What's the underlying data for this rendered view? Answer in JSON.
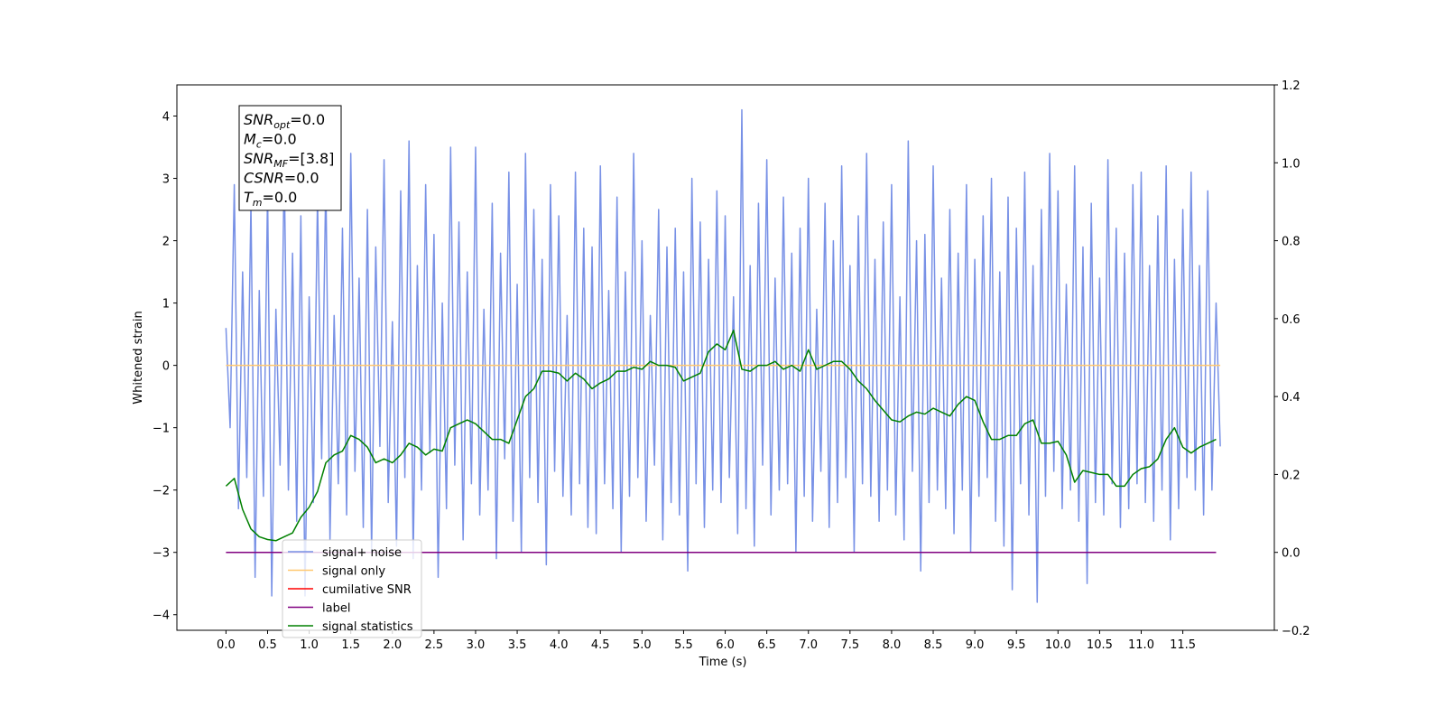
{
  "chart_data": {
    "type": "line",
    "xlabel": "Time (s)",
    "ylabel": "Whitened strain",
    "xlim": [
      -0.59,
      12.6
    ],
    "ylim": [
      -4.25,
      4.5
    ],
    "y2lim": [
      -0.2,
      1.2
    ],
    "xticks": [
      {
        "value": 0,
        "label": "0.0"
      },
      {
        "value": 0.5,
        "label": "0.5"
      },
      {
        "value": 1,
        "label": "1.0"
      },
      {
        "value": 1.5,
        "label": "1.5"
      },
      {
        "value": 2,
        "label": "2.0"
      },
      {
        "value": 2.5,
        "label": "2.5"
      },
      {
        "value": 3,
        "label": "3.0"
      },
      {
        "value": 3.5,
        "label": "3.5"
      },
      {
        "value": 4,
        "label": "4.0"
      },
      {
        "value": 4.5,
        "label": "4.5"
      },
      {
        "value": 5,
        "label": "5.0"
      },
      {
        "value": 5.5,
        "label": "5.5"
      },
      {
        "value": 6,
        "label": "6.0"
      },
      {
        "value": 6.5,
        "label": "6.5"
      },
      {
        "value": 7,
        "label": "7.0"
      },
      {
        "value": 7.5,
        "label": "7.5"
      },
      {
        "value": 8,
        "label": "8.0"
      },
      {
        "value": 8.5,
        "label": "8.5"
      },
      {
        "value": 9,
        "label": "9.0"
      },
      {
        "value": 9.5,
        "label": "9.5"
      },
      {
        "value": 10,
        "label": "10.0"
      },
      {
        "value": 10.5,
        "label": "10.5"
      },
      {
        "value": 11,
        "label": "11.0"
      },
      {
        "value": 11.5,
        "label": "11.5"
      }
    ],
    "yticks": [
      {
        "value": -4,
        "label": "−4"
      },
      {
        "value": -3,
        "label": "−3"
      },
      {
        "value": -2,
        "label": "−2"
      },
      {
        "value": -1,
        "label": "−1"
      },
      0,
      1,
      2,
      3,
      4
    ],
    "y2ticks": [
      {
        "value": -0.2,
        "label": "−0.2"
      },
      {
        "value": 0,
        "label": "0.0"
      },
      0.2,
      0.4,
      0.6,
      0.8,
      {
        "value": 1,
        "label": "1.0"
      },
      1.2
    ],
    "legend": "lower left",
    "annotation": [
      {
        "text": "SNR",
        "sub": "opt",
        "rest": "=0.0"
      },
      {
        "text": "M",
        "sub": "c",
        "rest": "=0.0"
      },
      {
        "text": "SNR",
        "sub": "MF",
        "rest": "=[3.8]"
      },
      {
        "text": "CSNR",
        "rest": "=0.0"
      },
      {
        "text": "T",
        "sub": "m",
        "rest": "=0.0"
      }
    ],
    "series": [
      {
        "name": "signal+ noise",
        "color": "#7891e6",
        "x": [
          0,
          0.05,
          0.1,
          0.15,
          0.2,
          0.25,
          0.3,
          0.35,
          0.4,
          0.45,
          0.5,
          0.55,
          0.6,
          0.65,
          0.7,
          0.75,
          0.8,
          0.85,
          0.9,
          0.95,
          1,
          1.05,
          1.1,
          1.15,
          1.2,
          1.25,
          1.3,
          1.35,
          1.4,
          1.45,
          1.5,
          1.55,
          1.6,
          1.65,
          1.7,
          1.75,
          1.8,
          1.85,
          1.9,
          1.95,
          2,
          2.05,
          2.1,
          2.15,
          2.2,
          2.25,
          2.3,
          2.35,
          2.4,
          2.45,
          2.5,
          2.55,
          2.6,
          2.65,
          2.7,
          2.75,
          2.8,
          2.85,
          2.9,
          2.95,
          3,
          3.05,
          3.1,
          3.15,
          3.2,
          3.25,
          3.3,
          3.35,
          3.4,
          3.45,
          3.5,
          3.55,
          3.6,
          3.65,
          3.7,
          3.75,
          3.8,
          3.85,
          3.9,
          3.95,
          4,
          4.05,
          4.1,
          4.15,
          4.2,
          4.25,
          4.3,
          4.35,
          4.4,
          4.45,
          4.5,
          4.55,
          4.6,
          4.65,
          4.7,
          4.75,
          4.8,
          4.85,
          4.9,
          4.95,
          5,
          5.05,
          5.1,
          5.15,
          5.2,
          5.25,
          5.3,
          5.35,
          5.4,
          5.45,
          5.5,
          5.55,
          5.6,
          5.65,
          5.7,
          5.75,
          5.8,
          5.85,
          5.9,
          5.95,
          6,
          6.05,
          6.1,
          6.15,
          6.2,
          6.25,
          6.3,
          6.35,
          6.4,
          6.45,
          6.5,
          6.55,
          6.6,
          6.65,
          6.7,
          6.75,
          6.8,
          6.85,
          6.9,
          6.95,
          7,
          7.05,
          7.1,
          7.15,
          7.2,
          7.25,
          7.3,
          7.35,
          7.4,
          7.45,
          7.5,
          7.55,
          7.6,
          7.65,
          7.7,
          7.75,
          7.8,
          7.85,
          7.9,
          7.95,
          8,
          8.05,
          8.1,
          8.15,
          8.2,
          8.25,
          8.3,
          8.35,
          8.4,
          8.45,
          8.5,
          8.55,
          8.6,
          8.65,
          8.7,
          8.75,
          8.8,
          8.85,
          8.9,
          8.95,
          9,
          9.05,
          9.1,
          9.15,
          9.2,
          9.25,
          9.3,
          9.35,
          9.4,
          9.45,
          9.5,
          9.55,
          9.6,
          9.65,
          9.7,
          9.75,
          9.8,
          9.85,
          9.9,
          9.95,
          10,
          10.05,
          10.1,
          10.15,
          10.2,
          10.25,
          10.3,
          10.35,
          10.4,
          10.45,
          10.5,
          10.55,
          10.6,
          10.65,
          10.7,
          10.75,
          10.8,
          10.85,
          10.9,
          10.95,
          11,
          11.05,
          11.1,
          11.15,
          11.2,
          11.25,
          11.3,
          11.35,
          11.4,
          11.45,
          11.5,
          11.55,
          11.6,
          11.65,
          11.7,
          11.75,
          11.8,
          11.85,
          11.9,
          11.95
        ],
        "values": [
          0.6,
          -1.0,
          2.9,
          -2.3,
          1.5,
          -1.8,
          2.6,
          -3.4,
          1.2,
          -2.1,
          2.8,
          -3.7,
          0.9,
          -1.6,
          3.2,
          -2.0,
          1.8,
          -2.5,
          2.4,
          -3.7,
          1.1,
          -2.2,
          2.7,
          -1.5,
          3.0,
          -2.8,
          0.8,
          -1.9,
          2.2,
          -2.4,
          3.4,
          -1.7,
          1.4,
          -2.6,
          2.5,
          -3.0,
          1.9,
          -1.3,
          3.3,
          -2.2,
          0.7,
          -2.9,
          2.8,
          -1.8,
          3.6,
          -3.1,
          1.6,
          -2.0,
          2.9,
          -1.4,
          2.1,
          -3.4,
          1.0,
          -2.3,
          3.5,
          -1.6,
          2.3,
          -2.8,
          1.5,
          -1.9,
          3.5,
          -2.4,
          0.9,
          -2.0,
          2.6,
          -3.1,
          1.8,
          -1.5,
          3.1,
          -2.5,
          1.3,
          -3.0,
          3.4,
          -1.8,
          2.5,
          -2.2,
          1.7,
          -3.2,
          2.9,
          -1.7,
          2.4,
          -2.1,
          0.8,
          -2.4,
          3.1,
          -1.9,
          2.2,
          -2.6,
          1.9,
          -2.7,
          3.2,
          -1.9,
          1.2,
          -2.3,
          2.7,
          -3.0,
          1.5,
          -2.1,
          3.4,
          -1.8,
          2.0,
          -2.5,
          0.8,
          -1.6,
          2.5,
          -2.8,
          1.9,
          -2.2,
          2.2,
          -2.4,
          1.5,
          -3.3,
          3.0,
          -1.9,
          2.3,
          -2.6,
          1.7,
          -2.0,
          2.8,
          -2.2,
          2.4,
          -1.8,
          1.1,
          -2.7,
          4.1,
          -2.3,
          1.6,
          -2.9,
          2.6,
          -1.6,
          3.3,
          -2.4,
          1.4,
          -2.0,
          2.7,
          -1.9,
          1.8,
          -3.0,
          2.2,
          -2.1,
          3.0,
          -2.5,
          0.9,
          -1.7,
          2.6,
          -2.6,
          2.0,
          -2.2,
          3.2,
          -1.8,
          1.6,
          -3.0,
          2.4,
          -1.9,
          3.4,
          -2.1,
          1.7,
          -2.5,
          2.3,
          -2.0,
          2.9,
          -2.4,
          1.1,
          -2.8,
          3.6,
          -1.7,
          2.0,
          -3.3,
          2.1,
          -2.2,
          3.2,
          -2.0,
          1.4,
          -2.3,
          2.5,
          -2.7,
          1.8,
          -2.0,
          2.9,
          -3.0,
          1.7,
          -2.1,
          2.4,
          -1.8,
          3.0,
          -2.5,
          1.5,
          -2.9,
          2.7,
          -3.6,
          2.2,
          -1.9,
          3.1,
          -2.4,
          1.6,
          -3.8,
          2.5,
          -2.1,
          3.4,
          -1.7,
          2.8,
          -2.3,
          1.3,
          -2.0,
          3.2,
          -2.5,
          1.9,
          -3.5,
          2.6,
          -2.2,
          1.4,
          -2.4,
          3.3,
          -1.9,
          2.2,
          -2.6,
          1.8,
          -2.3,
          2.9,
          -1.9,
          3.1,
          -2.2,
          1.6,
          -2.5,
          2.4,
          -2.0,
          3.2,
          -2.8,
          1.7,
          -2.3,
          2.5,
          -1.8,
          3.1,
          -2.0,
          1.6,
          -2.4,
          2.8,
          -2.0,
          1.0,
          -1.3
        ]
      },
      {
        "name": "signal only",
        "color": "#ffc870",
        "x": [
          0,
          11.95
        ],
        "values": [
          0,
          0
        ]
      },
      {
        "name": "cumilative SNR",
        "color": "#ff0000",
        "x": [],
        "values": []
      },
      {
        "name": "label",
        "color": "#800080",
        "axis": "y2",
        "x": [
          0,
          11.9
        ],
        "values": [
          0,
          0
        ]
      },
      {
        "name": "signal statistics",
        "color": "#008000",
        "axis": "y2",
        "x": [
          0,
          0.1,
          0.2,
          0.3,
          0.4,
          0.5,
          0.6,
          0.7,
          0.8,
          0.9,
          1,
          1.1,
          1.2,
          1.3,
          1.4,
          1.5,
          1.6,
          1.7,
          1.8,
          1.9,
          2,
          2.1,
          2.2,
          2.3,
          2.4,
          2.5,
          2.6,
          2.7,
          2.8,
          2.9,
          3,
          3.1,
          3.2,
          3.3,
          3.4,
          3.5,
          3.6,
          3.7,
          3.8,
          3.9,
          4,
          4.1,
          4.2,
          4.3,
          4.4,
          4.5,
          4.6,
          4.7,
          4.8,
          4.9,
          5,
          5.1,
          5.2,
          5.3,
          5.4,
          5.5,
          5.6,
          5.7,
          5.8,
          5.9,
          6,
          6.1,
          6.2,
          6.3,
          6.4,
          6.5,
          6.6,
          6.7,
          6.8,
          6.9,
          7,
          7.1,
          7.2,
          7.3,
          7.4,
          7.5,
          7.6,
          7.7,
          7.8,
          7.9,
          8,
          8.1,
          8.2,
          8.3,
          8.4,
          8.5,
          8.6,
          8.7,
          8.8,
          8.9,
          9,
          9.1,
          9.2,
          9.3,
          9.4,
          9.5,
          9.6,
          9.7,
          9.8,
          9.9,
          10,
          10.1,
          10.2,
          10.3,
          10.4,
          10.5,
          10.6,
          10.7,
          10.8,
          10.9,
          11,
          11.1,
          11.2,
          11.3,
          11.4,
          11.5,
          11.6,
          11.7,
          11.8,
          11.9
        ],
        "values": [
          0.17,
          0.19,
          0.11,
          0.06,
          0.04,
          0.033,
          0.03,
          0.04,
          0.05,
          0.09,
          0.116,
          0.156,
          0.23,
          0.25,
          0.26,
          0.3,
          0.29,
          0.27,
          0.23,
          0.24,
          0.23,
          0.25,
          0.28,
          0.27,
          0.25,
          0.265,
          0.26,
          0.32,
          0.33,
          0.34,
          0.33,
          0.31,
          0.29,
          0.29,
          0.28,
          0.34,
          0.4,
          0.42,
          0.465,
          0.465,
          0.46,
          0.44,
          0.46,
          0.445,
          0.42,
          0.435,
          0.445,
          0.465,
          0.465,
          0.475,
          0.47,
          0.49,
          0.48,
          0.48,
          0.475,
          0.44,
          0.45,
          0.46,
          0.515,
          0.535,
          0.52,
          0.57,
          0.47,
          0.465,
          0.48,
          0.48,
          0.49,
          0.47,
          0.48,
          0.465,
          0.52,
          0.47,
          0.48,
          0.49,
          0.49,
          0.47,
          0.44,
          0.42,
          0.39,
          0.365,
          0.34,
          0.335,
          0.35,
          0.36,
          0.355,
          0.37,
          0.36,
          0.35,
          0.38,
          0.4,
          0.39,
          0.335,
          0.29,
          0.29,
          0.3,
          0.3,
          0.33,
          0.34,
          0.28,
          0.28,
          0.285,
          0.25,
          0.18,
          0.21,
          0.205,
          0.2,
          0.2,
          0.17,
          0.17,
          0.2,
          0.215,
          0.22,
          0.24,
          0.29,
          0.32,
          0.27,
          0.255,
          0.27,
          0.28,
          0.29
        ]
      }
    ]
  }
}
